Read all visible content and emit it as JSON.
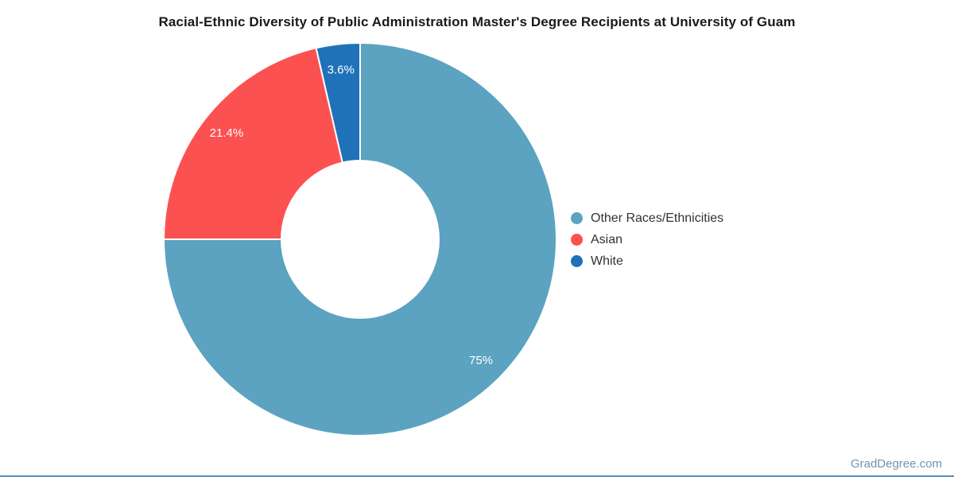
{
  "title": "Racial-Ethnic Diversity of Public Administration Master's Degree Recipients at University of Guam",
  "watermark": "GradDegree.com",
  "colors": {
    "title_text": "#1a1a1a",
    "legend_text": "#333333",
    "slice_label_text": "#ffffff",
    "slice_separator": "#ffffff",
    "watermark_text": "#6e96ac",
    "accent_bar": "#5292c6",
    "background": "#ffffff"
  },
  "chart_data": {
    "type": "pie",
    "subtype": "donut",
    "title": "Racial-Ethnic Diversity of Public Administration Master's Degree Recipients at University of Guam",
    "direction": "clockwise",
    "start_angle_deg": 0,
    "inner_radius_ratio": 0.4,
    "legend_position": "right",
    "series": [
      {
        "name": "Other Races/Ethnicities",
        "value": 75,
        "label": "75%",
        "color": "#5ba3c0"
      },
      {
        "name": "Asian",
        "value": 21.4,
        "label": "21.4%",
        "color": "#fc5151"
      },
      {
        "name": "White",
        "value": 3.6,
        "label": "3.6%",
        "color": "#1f72b8"
      }
    ]
  }
}
